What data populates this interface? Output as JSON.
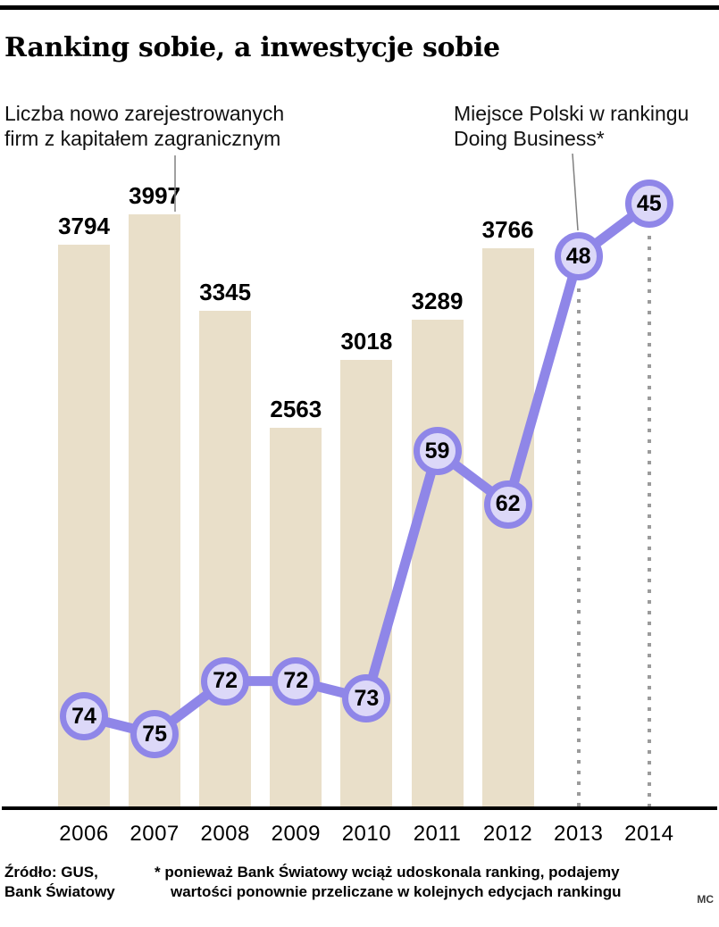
{
  "title": "Ranking sobie, a inwestycje sobie",
  "annotations": {
    "bars_line1": "Liczba nowo zarejestrowanych",
    "bars_line2": "firm z kapitałem zagranicznym",
    "line_line1": "Miejsce Polski w rankingu",
    "line_line2": "Doing Business*"
  },
  "footer": {
    "source_line1": "Źródło: GUS,",
    "source_line2": "Bank Światowy",
    "footnote_line1": "* ponieważ Bank Światowy wciąż udoskonala ranking, podajemy",
    "footnote_line2": "wartości ponownie przeliczane w kolejnych edycjach rankingu",
    "credit": "MC"
  },
  "colors": {
    "bar": "#e9dfc9",
    "line": "#8f86e8",
    "circle_fill": "#dcd8f8",
    "guide": "#9b9b9b",
    "pointer": "#808080"
  },
  "chart_data": {
    "type": "bar",
    "categories": [
      "2006",
      "2007",
      "2008",
      "2009",
      "2010",
      "2011",
      "2012",
      "2013",
      "2014"
    ],
    "series": [
      {
        "name": "Liczba nowo zarejestrowanych firm z kapitałem zagranicznym",
        "type": "bar",
        "values": [
          3794,
          3997,
          3345,
          2563,
          3018,
          3289,
          3766,
          null,
          null
        ]
      },
      {
        "name": "Miejsce Polski w rankingu Doing Business*",
        "type": "line",
        "values": [
          74,
          75,
          72,
          72,
          73,
          59,
          62,
          48,
          45
        ],
        "axis_inverted": true
      }
    ],
    "title": "Ranking sobie, a inwestycje sobie",
    "xlabel": "",
    "ylabel": "",
    "bar_ylim": [
      0,
      4200
    ],
    "rank_axis": {
      "min": 45,
      "max": 75,
      "inverted": true
    },
    "grid": false,
    "legend_position": "annotations-above-chart"
  }
}
